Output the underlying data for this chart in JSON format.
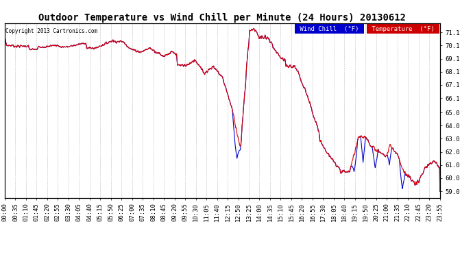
{
  "title": "Outdoor Temperature vs Wind Chill per Minute (24 Hours) 20130612",
  "copyright": "Copyright 2013 Cartronics.com",
  "ylim": [
    58.5,
    71.8
  ],
  "yticks": [
    59.0,
    60.0,
    61.0,
    62.0,
    63.0,
    64.0,
    65.0,
    66.1,
    67.1,
    68.1,
    69.1,
    70.1,
    71.1
  ],
  "legend_wind_chill_bg": "#0000cc",
  "legend_temp_bg": "#cc0000",
  "temp_color": "#dd0000",
  "wind_chill_color": "#0000cc",
  "background_color": "#ffffff",
  "grid_color": "#bbbbbb",
  "title_fontsize": 10,
  "tick_label_size": 6.5,
  "x_tick_labels": [
    "00:00",
    "00:35",
    "01:10",
    "01:45",
    "02:20",
    "02:55",
    "03:30",
    "04:05",
    "04:40",
    "05:15",
    "05:50",
    "06:25",
    "07:00",
    "07:35",
    "08:10",
    "08:45",
    "09:20",
    "09:55",
    "10:30",
    "11:05",
    "11:40",
    "12:15",
    "12:50",
    "13:25",
    "14:00",
    "14:35",
    "15:10",
    "15:45",
    "16:20",
    "16:55",
    "17:30",
    "18:05",
    "18:40",
    "19:15",
    "19:50",
    "20:25",
    "21:00",
    "21:35",
    "22:10",
    "22:45",
    "23:20",
    "23:55"
  ],
  "n_minutes": 1440
}
